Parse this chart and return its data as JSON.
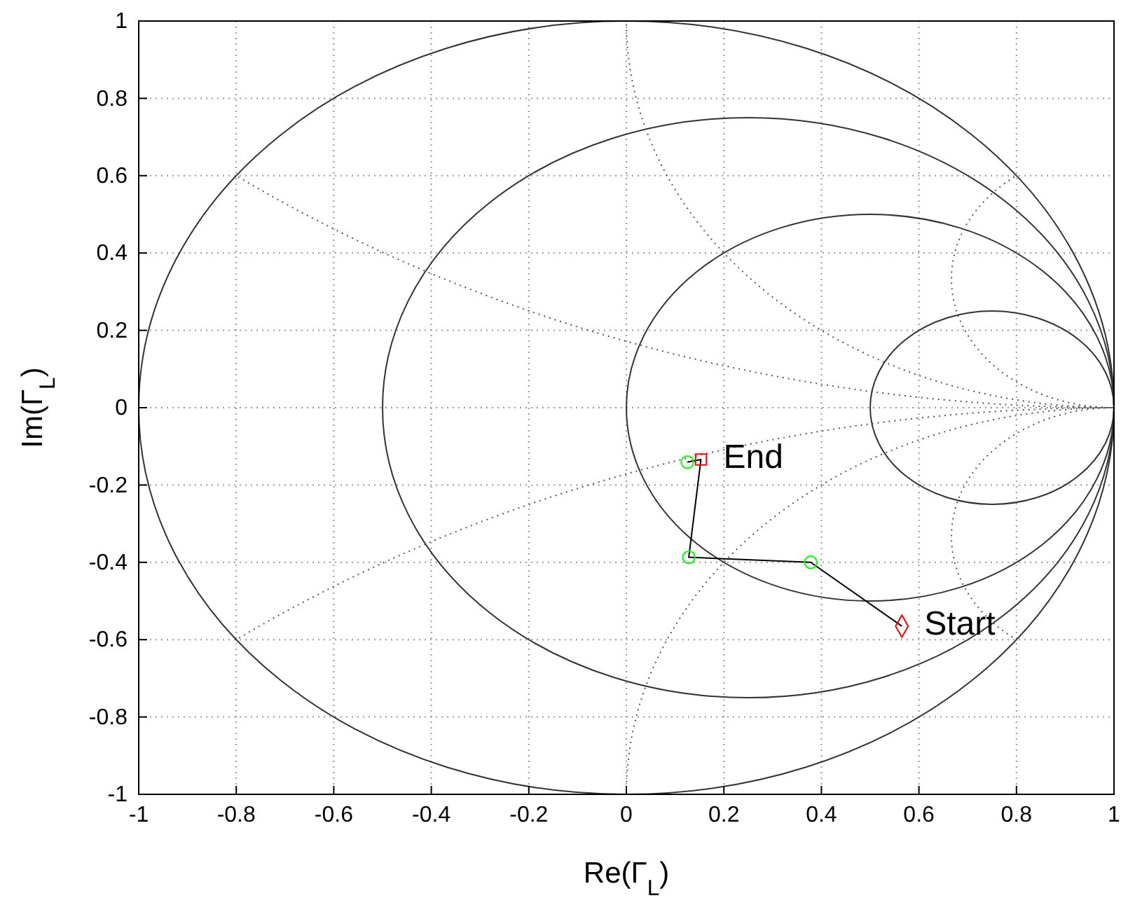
{
  "chart_data": {
    "type": "line",
    "xlabel": "Re(Γ$_{L}$)",
    "ylabel": "Im(Γ$_{L}$)",
    "xlim": [
      -1,
      1
    ],
    "xticks": [
      -1,
      -0.8,
      -0.6,
      -0.4,
      -0.2,
      0,
      0.2,
      0.4,
      0.6,
      0.8,
      1
    ],
    "ylim": [
      -1,
      1
    ],
    "yticks": [
      -1,
      -0.8,
      -0.6,
      -0.4,
      -0.2,
      0,
      0.2,
      0.4,
      0.6,
      0.8,
      1
    ],
    "grid": true,
    "series": [
      {
        "color": "#000000",
        "marker": "none",
        "x": [
          0.565,
          0.378,
          0.128,
          0.153,
          0.125
        ],
        "values": [
          -0.565,
          -0.4,
          -0.387,
          -0.134,
          -0.141
        ]
      },
      {
        "type": "scatter",
        "color": "#00ff00",
        "marker": "circle",
        "x": [
          0.378,
          0.128,
          0.125
        ],
        "values": [
          -0.4,
          -0.387,
          -0.141
        ]
      },
      {
        "type": "scatter",
        "color": "#ff0000",
        "marker": "diamond",
        "x": [
          0.565
        ],
        "values": [
          -0.565
        ]
      },
      {
        "type": "scatter",
        "color": "#ff0000",
        "marker": "square",
        "x": [
          0.153
        ],
        "values": [
          -0.134
        ]
      }
    ],
    "annotations": [
      {
        "text": "Start",
        "x": 0.565,
        "y": -0.565
      },
      {
        "text": "End",
        "x": 0.153,
        "y": -0.134
      }
    ]
  }
}
